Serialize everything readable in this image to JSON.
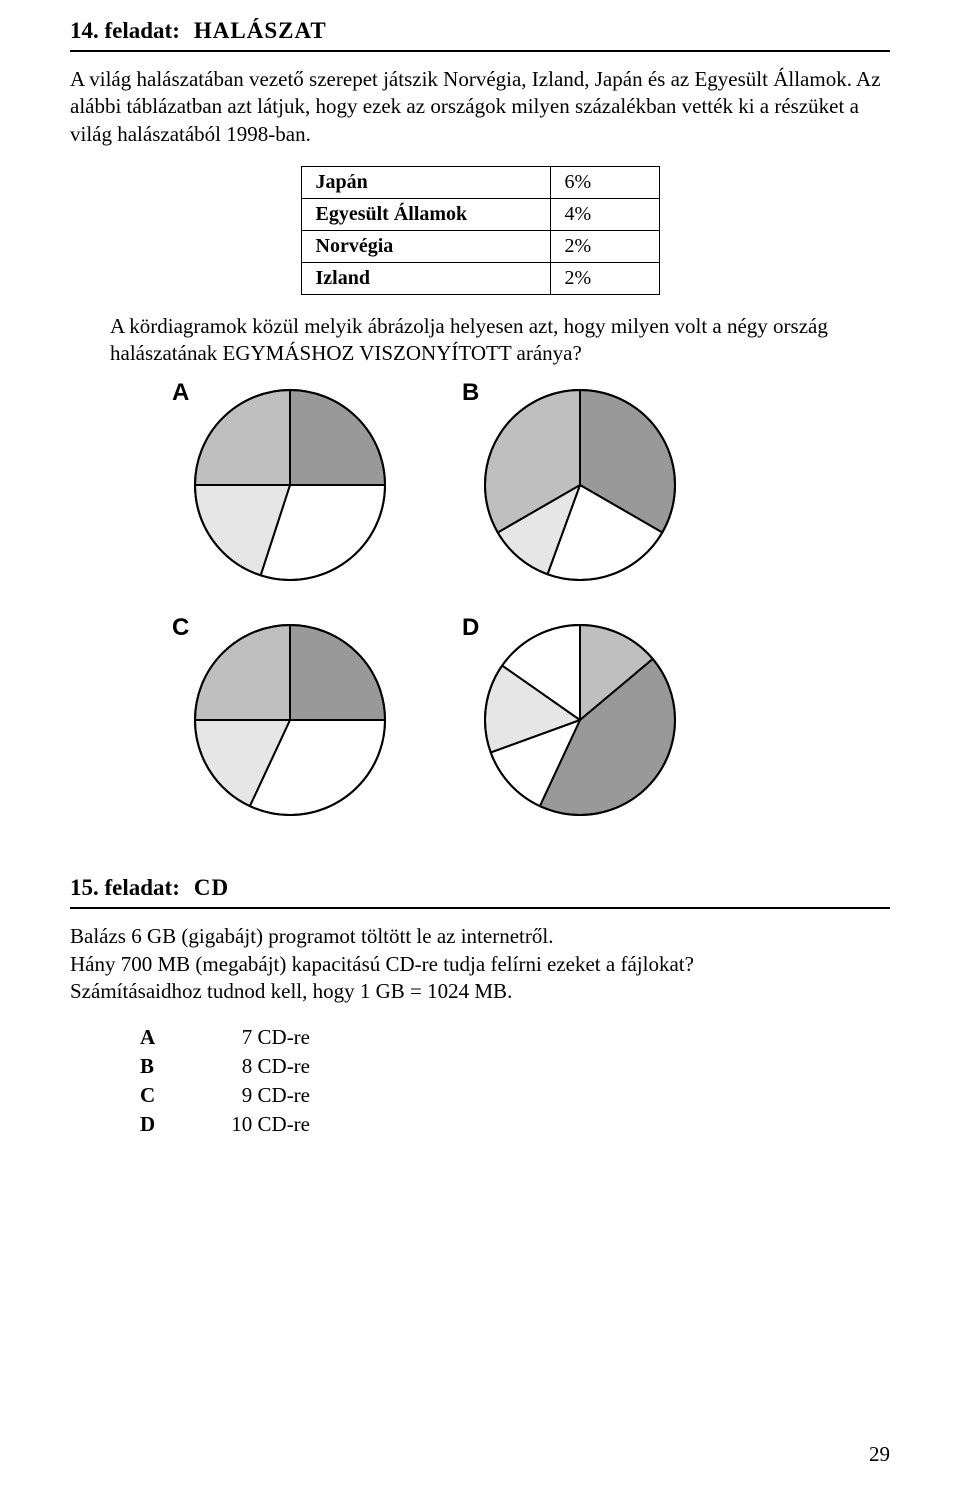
{
  "task14": {
    "number": "14. feladat:",
    "title": "HALÁSZAT",
    "intro": "A világ halászatában vezető szerepet játszik Norvégia, Izland, Japán és az Egyesült Államok. Az alábbi táblázatban azt látjuk, hogy ezek az országok milyen százalékban vették ki a részüket a világ halászatából 1998-ban.",
    "table": {
      "rows": [
        {
          "country": "Japán",
          "value": "6%"
        },
        {
          "country": "Egyesült Államok",
          "value": "4%"
        },
        {
          "country": "Norvégia",
          "value": "2%"
        },
        {
          "country": "Izland",
          "value": "2%"
        }
      ]
    },
    "question": "A kördiagramok közül melyik ábrázolja helyesen azt, hogy milyen volt a négy ország halászatának EGYMÁSHOZ VISZONYÍTOTT aránya?",
    "charts": {
      "radius": 95,
      "stroke": "#000000",
      "stroke_width": 2,
      "colors": {
        "dark": "#999999",
        "mid": "#bfbfbf",
        "light": "#e6e6e6",
        "white": "#ffffff"
      },
      "items": [
        {
          "label": "A",
          "slices": [
            {
              "start": -90,
              "end": 0,
              "fill": "dark"
            },
            {
              "start": 0,
              "end": 108,
              "fill": "white"
            },
            {
              "start": 108,
              "end": 180,
              "fill": "light"
            },
            {
              "start": 180,
              "end": 270,
              "fill": "mid"
            }
          ]
        },
        {
          "label": "B",
          "slices": [
            {
              "start": -90,
              "end": 30,
              "fill": "dark"
            },
            {
              "start": 30,
              "end": 110,
              "fill": "white"
            },
            {
              "start": 110,
              "end": 150,
              "fill": "light"
            },
            {
              "start": 150,
              "end": 270,
              "fill": "mid"
            }
          ]
        },
        {
          "label": "C",
          "slices": [
            {
              "start": -90,
              "end": 0,
              "fill": "dark"
            },
            {
              "start": 0,
              "end": 115,
              "fill": "white"
            },
            {
              "start": 115,
              "end": 180,
              "fill": "light"
            },
            {
              "start": 180,
              "end": 270,
              "fill": "mid"
            }
          ]
        },
        {
          "label": "D",
          "slices": [
            {
              "start": -90,
              "end": -40,
              "fill": "mid"
            },
            {
              "start": -40,
              "end": 115,
              "fill": "dark"
            },
            {
              "start": 115,
              "end": 160,
              "fill": "white"
            },
            {
              "start": 160,
              "end": 215,
              "fill": "light"
            },
            {
              "start": 215,
              "end": 270,
              "fill": "white"
            }
          ]
        }
      ]
    }
  },
  "task15": {
    "number": "15. feladat:",
    "title": "CD",
    "body": "Balázs 6 GB (gigabájt) programot töltött le az internetről.\nHány 700 MB (megabájt) kapacitású CD-re tudja felírni ezeket a fájlokat?\nSzámításaidhoz tudnod kell, hogy 1 GB = 1024 MB.",
    "answers": [
      {
        "letter": "A",
        "text": "7 CD-re"
      },
      {
        "letter": "B",
        "text": "8 CD-re"
      },
      {
        "letter": "C",
        "text": "9 CD-re"
      },
      {
        "letter": "D",
        "text": "10 CD-re"
      }
    ]
  },
  "page_number": "29"
}
